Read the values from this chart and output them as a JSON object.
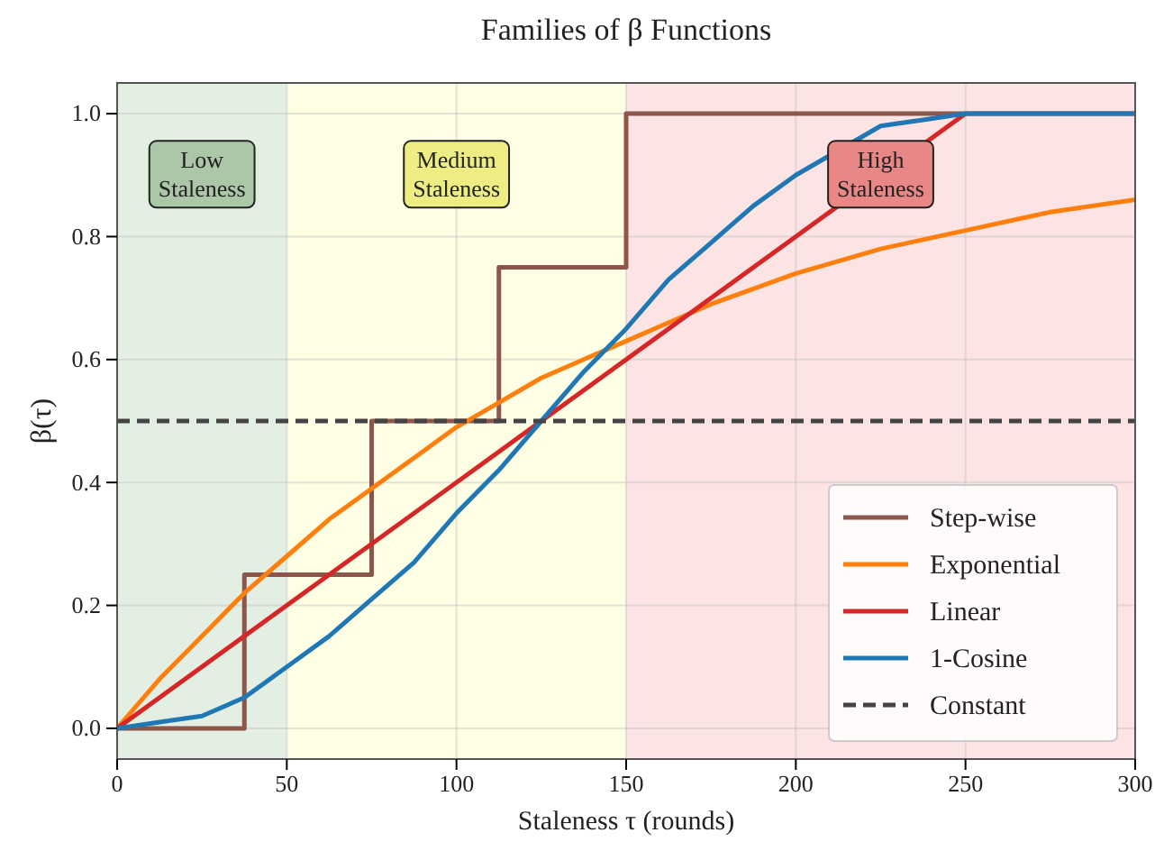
{
  "chart_data": {
    "type": "line",
    "title": "Families of β Functions",
    "xlabel": "Staleness τ (rounds)",
    "ylabel": "β(τ)",
    "xlim": [
      0,
      300
    ],
    "xticks": [
      0,
      50,
      100,
      150,
      200,
      250,
      300
    ],
    "ylim": [
      -0.05,
      1.05
    ],
    "yticks": [
      {
        "value": 0,
        "label": "0.0"
      },
      0.2,
      0.4,
      0.6,
      0.8,
      {
        "value": 1,
        "label": "1.0"
      }
    ],
    "grid": true,
    "legend": "bottom right",
    "line_style": "solid",
    "bands": [
      {
        "axis": "x",
        "from": 0,
        "to": 50,
        "label": "Low\nStaleness",
        "color": "#e4efe3"
      },
      {
        "axis": "x",
        "from": 50,
        "to": 150,
        "label": "Medium\nStaleness",
        "color": "#fefee4"
      },
      {
        "axis": "x",
        "from": 150,
        "to": 300,
        "label": "High\nStaleness",
        "color": "#fde4e4"
      }
    ],
    "series": [
      {
        "name": "Step-wise",
        "type": "step",
        "color": "#8c564b",
        "x": [
          0,
          37.5,
          75,
          112.5,
          150,
          300
        ],
        "values": [
          0,
          0.25,
          0.5,
          0.75,
          1,
          1
        ]
      },
      {
        "name": "Exponential",
        "color": "#ff7f0e",
        "x": [
          0,
          12.5,
          25,
          37.5,
          50,
          62.5,
          75,
          87.5,
          100,
          112.5,
          125,
          137.5,
          150,
          175,
          200,
          225,
          250,
          275,
          300
        ],
        "values": [
          0,
          0.08,
          0.15,
          0.22,
          0.28,
          0.34,
          0.39,
          0.44,
          0.49,
          0.53,
          0.57,
          0.6,
          0.63,
          0.69,
          0.74,
          0.78,
          0.81,
          0.84,
          0.86
        ]
      },
      {
        "name": "Linear",
        "color": "#d62728",
        "x": [
          0,
          250
        ],
        "values": [
          0,
          1
        ]
      },
      {
        "name": "1-Cosine",
        "color": "#1f77b4",
        "x": [
          0,
          12.5,
          25,
          37.5,
          50,
          62.5,
          75,
          87.5,
          100,
          112.5,
          125,
          137.5,
          150,
          162.5,
          175,
          187.5,
          200,
          225,
          237.5,
          250,
          300
        ],
        "values": [
          0,
          0.01,
          0.02,
          0.05,
          0.1,
          0.15,
          0.21,
          0.27,
          0.35,
          0.42,
          0.5,
          0.58,
          0.65,
          0.73,
          0.79,
          0.85,
          0.9,
          0.98,
          0.99,
          1,
          1
        ]
      },
      {
        "name": "Constant",
        "color": "#444444",
        "line_style": "dashed",
        "x": [
          0,
          300
        ],
        "values": [
          0.5,
          0.5
        ]
      }
    ]
  }
}
